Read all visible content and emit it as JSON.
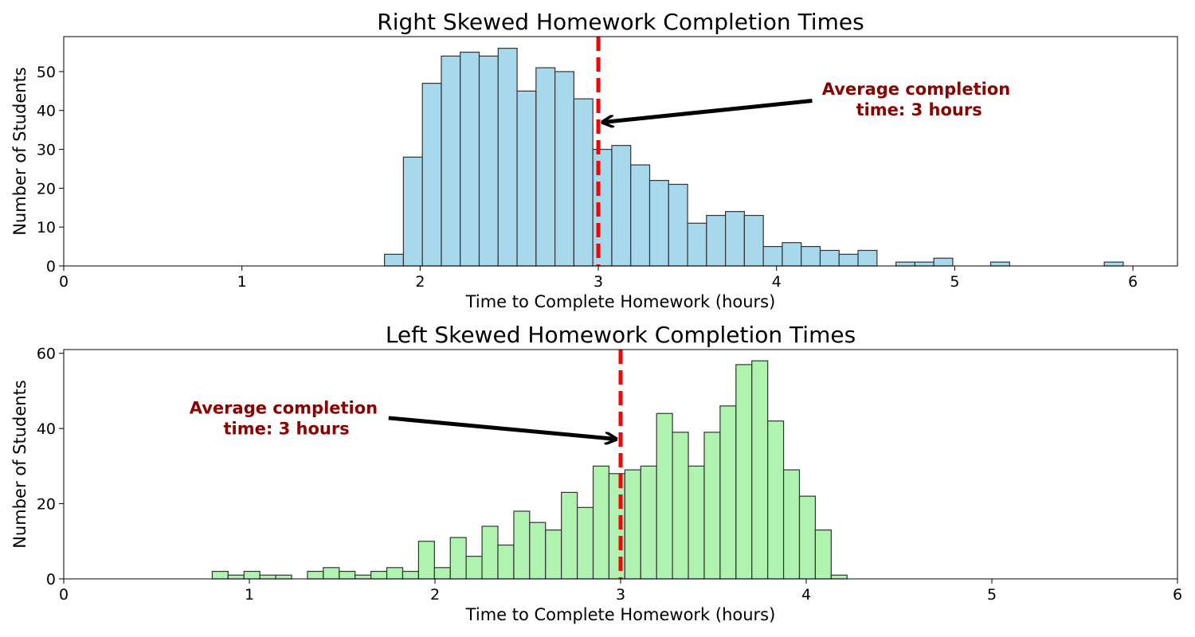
{
  "chart_data": [
    {
      "type": "bar",
      "title": "Right Skewed Homework Completion Times",
      "xlabel": "Time to Complete Homework (hours)",
      "ylabel": "Number of Students",
      "xlim": [
        0,
        6.25
      ],
      "ylim": [
        0,
        59
      ],
      "xticks": [
        "0",
        "1",
        "2",
        "3",
        "4",
        "5",
        "6"
      ],
      "yticks": [
        "0",
        "10",
        "20",
        "30",
        "40",
        "50"
      ],
      "bin_start": 1.8,
      "bin_width": 0.1063,
      "values": [
        3,
        28,
        47,
        54,
        55,
        54,
        56,
        45,
        51,
        50,
        43,
        30,
        31,
        26,
        22,
        21,
        11,
        13,
        14,
        13,
        5,
        6,
        5,
        4,
        3,
        4,
        0,
        1,
        1,
        2,
        0,
        0,
        1,
        0,
        0,
        0,
        0,
        0,
        1
      ],
      "colors": {
        "fill": "#a8d8ec",
        "edge": "#333333",
        "mean_line": "#ff0000",
        "annotation": "#8b0000"
      },
      "mean_line_x": 3,
      "annotation": {
        "line1": "Average completion",
        "line2": "time: 3 hours",
        "text_x": 4.8,
        "text_y": 44,
        "arrow_from": [
          4.2,
          42.5
        ],
        "arrow_to": [
          3.03,
          37
        ]
      },
      "grid": false
    },
    {
      "type": "bar",
      "title": "Left Skewed Homework Completion Times",
      "xlabel": "Time to Complete Homework (hours)",
      "ylabel": "Number of Students",
      "xlim": [
        0,
        6
      ],
      "ylim": [
        0,
        61
      ],
      "xticks": [
        "0",
        "1",
        "2",
        "3",
        "4",
        "5",
        "6"
      ],
      "yticks": [
        "0",
        "20",
        "40",
        "60"
      ],
      "bin_start": 0.8,
      "bin_width": 0.0855,
      "values": [
        2,
        1,
        2,
        1,
        1,
        0,
        2,
        3,
        2,
        1,
        2,
        3,
        2,
        10,
        3,
        11,
        6,
        14,
        9,
        18,
        15,
        13,
        23,
        19,
        30,
        28,
        29,
        30,
        44,
        39,
        30,
        39,
        46,
        57,
        58,
        42,
        29,
        22,
        13,
        1
      ],
      "colors": {
        "fill": "#b0f2b0",
        "edge": "#333333",
        "mean_line": "#ff0000",
        "annotation": "#8b0000"
      },
      "mean_line_x": 3,
      "annotation": {
        "line1": "Average completion",
        "line2": "time: 3 hours",
        "text_x": 1.2,
        "text_y": 44,
        "arrow_from": [
          1.75,
          42.8
        ],
        "arrow_to": [
          2.97,
          37.2
        ]
      },
      "grid": false
    }
  ]
}
